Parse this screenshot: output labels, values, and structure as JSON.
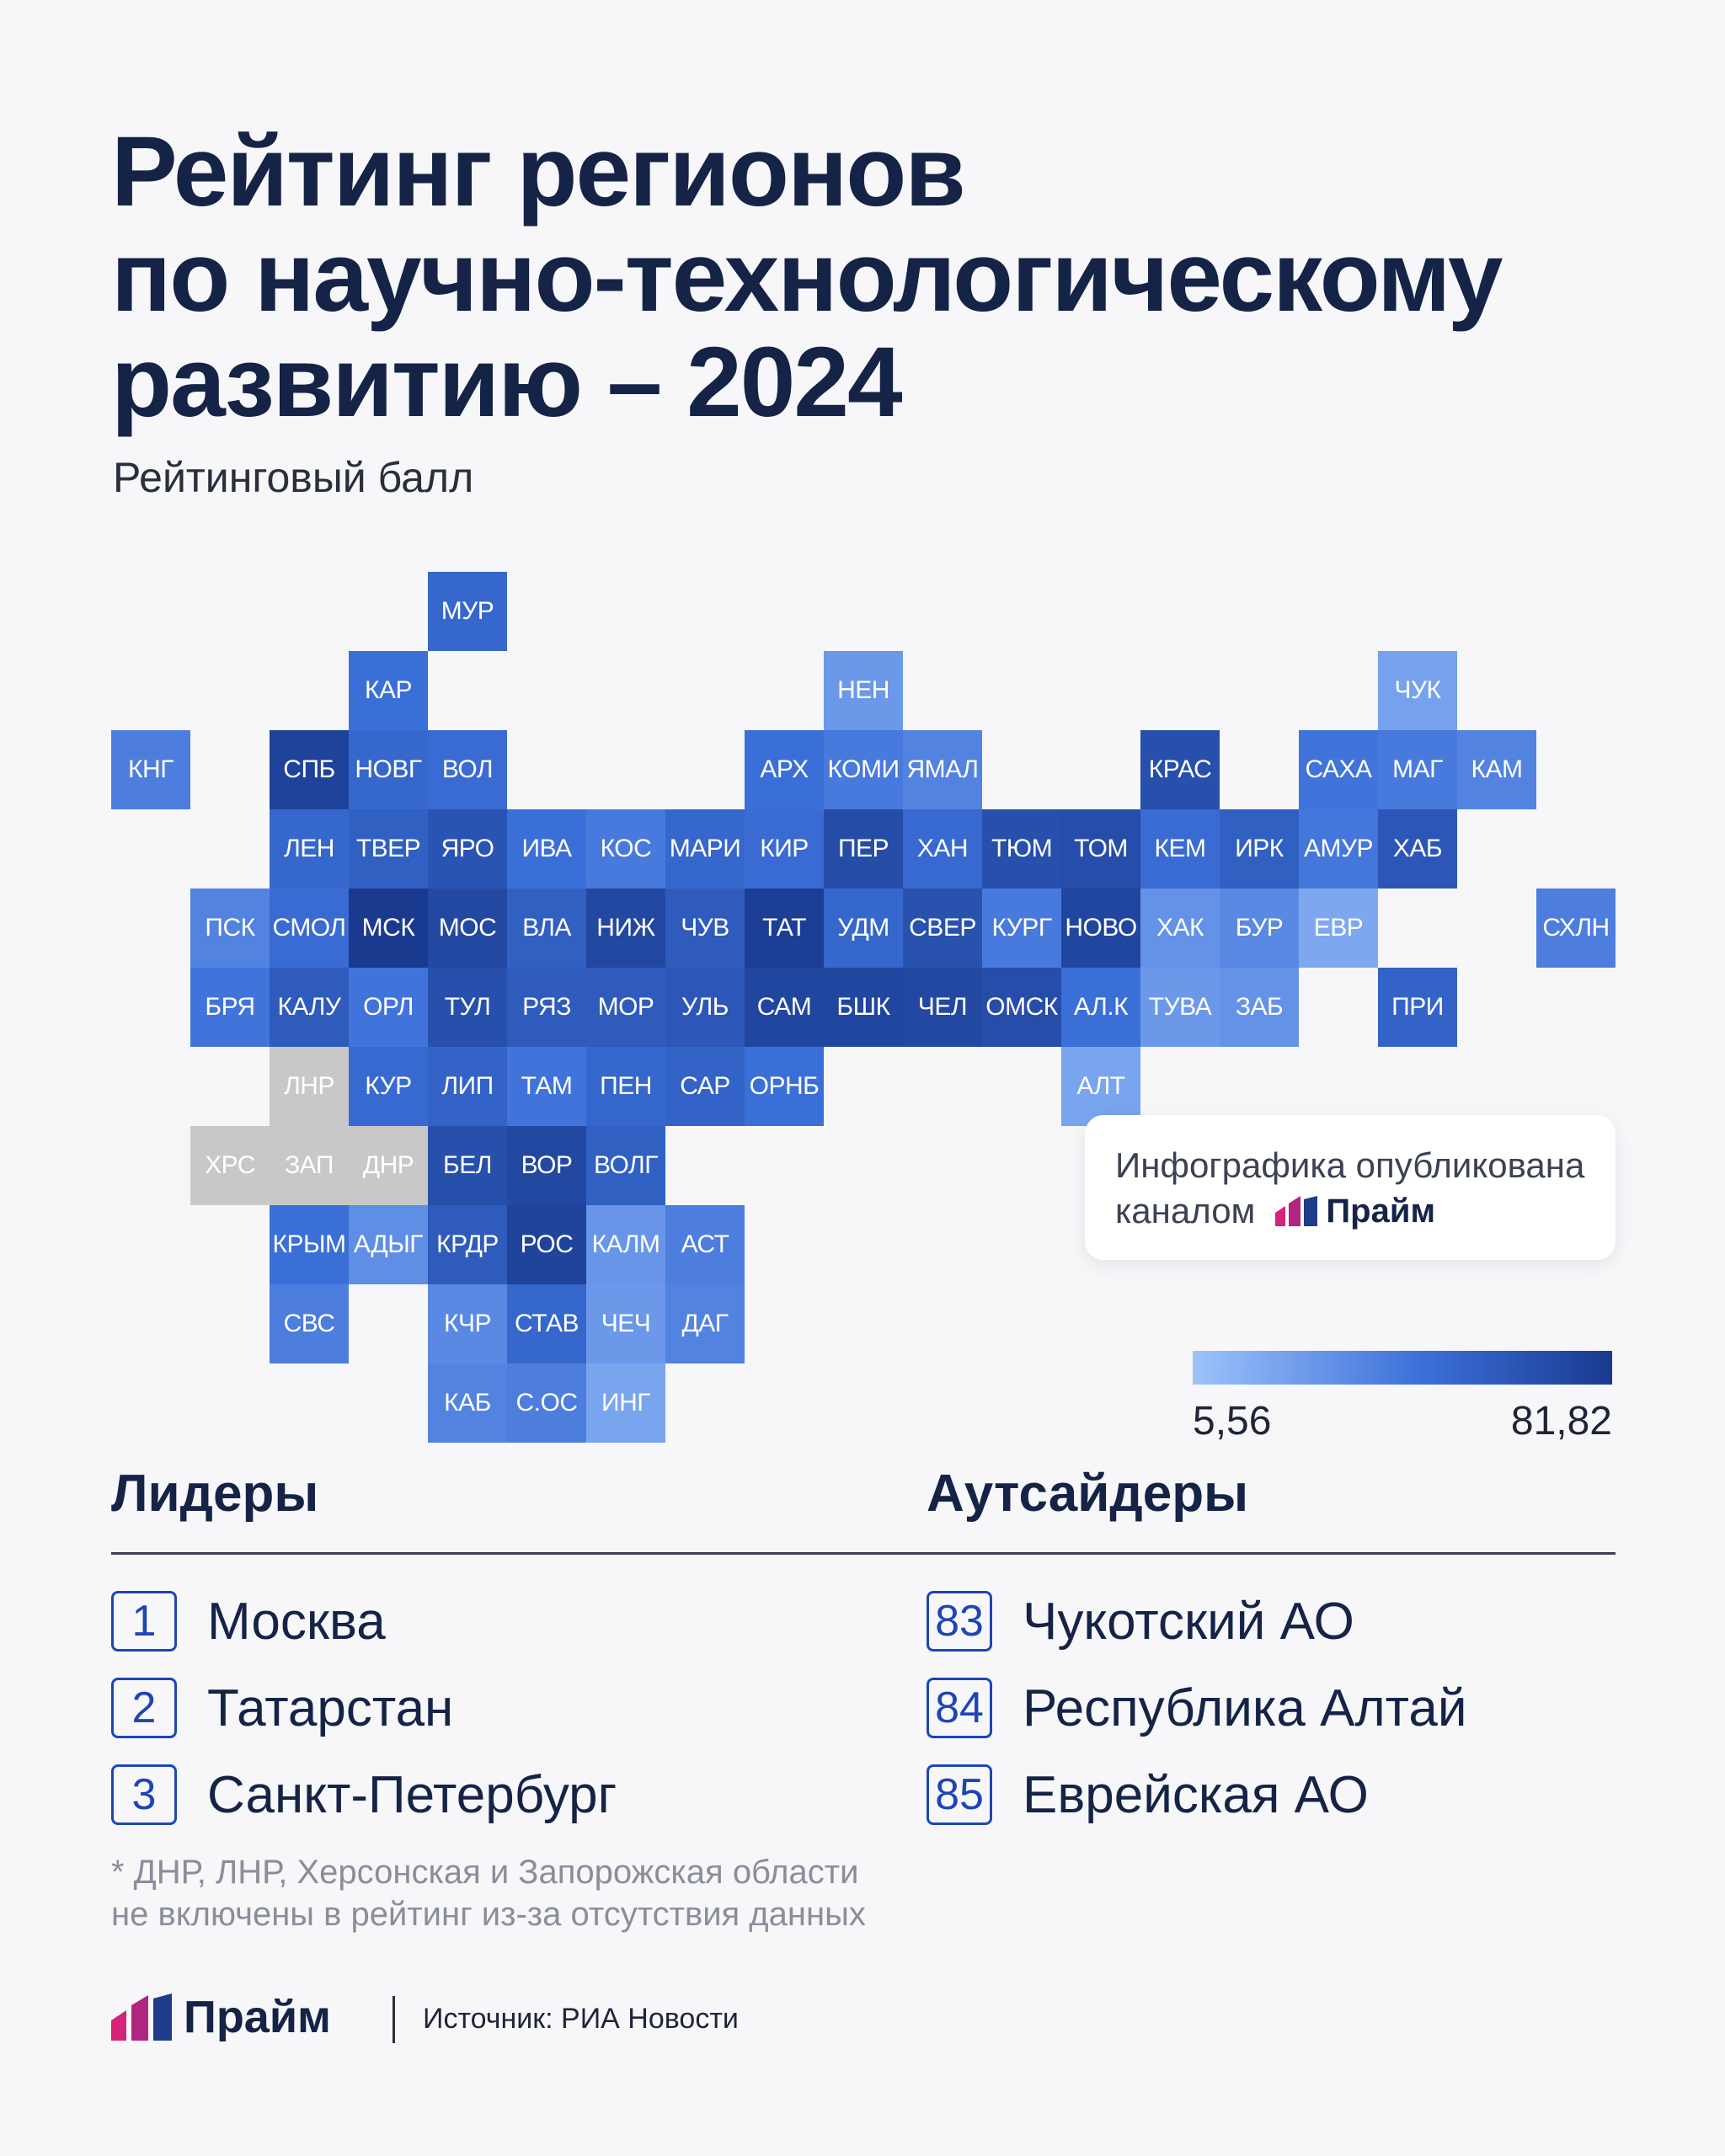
{
  "title_lines": [
    "Рейтинг регионов",
    "по научно-технологическому",
    "развитию – 2024"
  ],
  "subtitle": "Рейтинговый балл",
  "note": {
    "line1": "Инфографика опубликована",
    "line2": "каналом",
    "brand": "Прайм"
  },
  "legend": {
    "min": "5,56",
    "max": "81,82",
    "min_color": "#9dc3fb",
    "max_color": "#1a3a8f"
  },
  "colors": {
    "excluded": "#c8c8c8",
    "text_dark": "#152347",
    "accent": "#1f45b5"
  },
  "leaders": {
    "heading": "Лидеры",
    "items": [
      {
        "rank": "1",
        "name": "Москва"
      },
      {
        "rank": "2",
        "name": "Татарстан"
      },
      {
        "rank": "3",
        "name": "Санкт-Петербург"
      }
    ]
  },
  "outsiders": {
    "heading": "Аутсайдеры",
    "items": [
      {
        "rank": "83",
        "name": "Чукотский АО"
      },
      {
        "rank": "84",
        "name": "Республика Алтай"
      },
      {
        "rank": "85",
        "name": "Еврейская АО"
      }
    ]
  },
  "footnote": [
    "* ДНР, ЛНР, Херсонская и Запорожская области",
    "не включены в рейтинг из-за отсутствия данных"
  ],
  "footer": {
    "brand": "Прайм",
    "source": "Источник: РИА Новости"
  },
  "chart_data": {
    "type": "heatmap",
    "scale": {
      "min": 5.56,
      "max": 81.82
    },
    "cells": [
      {
        "label": "МУР",
        "row": 0,
        "col": 4,
        "shade": 0.62
      },
      {
        "label": "КАР",
        "row": 1,
        "col": 3,
        "shade": 0.55
      },
      {
        "label": "НЕН",
        "row": 1,
        "col": 9,
        "shade": 0.28
      },
      {
        "label": "ЧУК",
        "row": 1,
        "col": 16,
        "shade": 0.22
      },
      {
        "label": "КНГ",
        "row": 2,
        "col": 0,
        "shade": 0.45
      },
      {
        "label": "СПБ",
        "row": 2,
        "col": 2,
        "shade": 0.93
      },
      {
        "label": "НОВГ",
        "row": 2,
        "col": 3,
        "shade": 0.62
      },
      {
        "label": "ВОЛ",
        "row": 2,
        "col": 4,
        "shade": 0.58
      },
      {
        "label": "АРХ",
        "row": 2,
        "col": 8,
        "shade": 0.55
      },
      {
        "label": "КОМИ",
        "row": 2,
        "col": 9,
        "shade": 0.48
      },
      {
        "label": "ЯМАЛ",
        "row": 2,
        "col": 10,
        "shade": 0.42
      },
      {
        "label": "КРАС",
        "row": 2,
        "col": 13,
        "shade": 0.82
      },
      {
        "label": "САХА",
        "row": 2,
        "col": 15,
        "shade": 0.52
      },
      {
        "label": "МАГ",
        "row": 2,
        "col": 16,
        "shade": 0.48
      },
      {
        "label": "КАМ",
        "row": 2,
        "col": 17,
        "shade": 0.42
      },
      {
        "label": "ЛЕН",
        "row": 3,
        "col": 2,
        "shade": 0.62
      },
      {
        "label": "ТВЕР",
        "row": 3,
        "col": 3,
        "shade": 0.68
      },
      {
        "label": "ЯРО",
        "row": 3,
        "col": 4,
        "shade": 0.78
      },
      {
        "label": "ИВА",
        "row": 3,
        "col": 5,
        "shade": 0.55
      },
      {
        "label": "КОС",
        "row": 3,
        "col": 6,
        "shade": 0.48
      },
      {
        "label": "МАРИ",
        "row": 3,
        "col": 7,
        "shade": 0.62
      },
      {
        "label": "КИР",
        "row": 3,
        "col": 8,
        "shade": 0.58
      },
      {
        "label": "ПЕР",
        "row": 3,
        "col": 9,
        "shade": 0.85
      },
      {
        "label": "ХАН",
        "row": 3,
        "col": 10,
        "shade": 0.6
      },
      {
        "label": "ТЮМ",
        "row": 3,
        "col": 11,
        "shade": 0.82
      },
      {
        "label": "ТОМ",
        "row": 3,
        "col": 12,
        "shade": 0.84
      },
      {
        "label": "КЕМ",
        "row": 3,
        "col": 13,
        "shade": 0.58
      },
      {
        "label": "ИРК",
        "row": 3,
        "col": 14,
        "shade": 0.68
      },
      {
        "label": "АМУР",
        "row": 3,
        "col": 15,
        "shade": 0.5
      },
      {
        "label": "ХАБ",
        "row": 3,
        "col": 16,
        "shade": 0.75
      },
      {
        "label": "ПСК",
        "row": 4,
        "col": 1,
        "shade": 0.42
      },
      {
        "label": "СМОЛ",
        "row": 4,
        "col": 2,
        "shade": 0.58
      },
      {
        "label": "МСК",
        "row": 4,
        "col": 3,
        "shade": 1.0
      },
      {
        "label": "МОС",
        "row": 4,
        "col": 4,
        "shade": 0.88
      },
      {
        "label": "ВЛА",
        "row": 4,
        "col": 5,
        "shade": 0.68
      },
      {
        "label": "НИЖ",
        "row": 4,
        "col": 6,
        "shade": 0.88
      },
      {
        "label": "ЧУВ",
        "row": 4,
        "col": 7,
        "shade": 0.72
      },
      {
        "label": "ТАТ",
        "row": 4,
        "col": 8,
        "shade": 0.97
      },
      {
        "label": "УДМ",
        "row": 4,
        "col": 9,
        "shade": 0.62
      },
      {
        "label": "СВЕР",
        "row": 4,
        "col": 10,
        "shade": 0.8
      },
      {
        "label": "КУРГ",
        "row": 4,
        "col": 11,
        "shade": 0.48
      },
      {
        "label": "НОВО",
        "row": 4,
        "col": 12,
        "shade": 0.9
      },
      {
        "label": "ХАК",
        "row": 4,
        "col": 13,
        "shade": 0.32
      },
      {
        "label": "БУР",
        "row": 4,
        "col": 14,
        "shade": 0.38
      },
      {
        "label": "ЕВР",
        "row": 4,
        "col": 15,
        "shade": 0.18
      },
      {
        "label": "СХЛН",
        "row": 4,
        "col": 18,
        "shade": 0.45
      },
      {
        "label": "БРЯ",
        "row": 5,
        "col": 1,
        "shade": 0.52
      },
      {
        "label": "КАЛУ",
        "row": 5,
        "col": 2,
        "shade": 0.72
      },
      {
        "label": "ОРЛ",
        "row": 5,
        "col": 3,
        "shade": 0.52
      },
      {
        "label": "ТУЛ",
        "row": 5,
        "col": 4,
        "shade": 0.82
      },
      {
        "label": "РЯЗ",
        "row": 5,
        "col": 5,
        "shade": 0.72
      },
      {
        "label": "МОР",
        "row": 5,
        "col": 6,
        "shade": 0.72
      },
      {
        "label": "УЛЬ",
        "row": 5,
        "col": 7,
        "shade": 0.75
      },
      {
        "label": "САМ",
        "row": 5,
        "col": 8,
        "shade": 0.9
      },
      {
        "label": "БШК",
        "row": 5,
        "col": 9,
        "shade": 0.9
      },
      {
        "label": "ЧЕЛ",
        "row": 5,
        "col": 10,
        "shade": 0.88
      },
      {
        "label": "ОМСК",
        "row": 5,
        "col": 11,
        "shade": 0.84
      },
      {
        "label": "АЛ.К",
        "row": 5,
        "col": 12,
        "shade": 0.55
      },
      {
        "label": "ТУВА",
        "row": 5,
        "col": 13,
        "shade": 0.28
      },
      {
        "label": "ЗАБ",
        "row": 5,
        "col": 14,
        "shade": 0.32
      },
      {
        "label": "ПРИ",
        "row": 5,
        "col": 16,
        "shade": 0.65
      },
      {
        "label": "ЛНР",
        "row": 6,
        "col": 2,
        "shade": null
      },
      {
        "label": "КУР",
        "row": 6,
        "col": 3,
        "shade": 0.6
      },
      {
        "label": "ЛИП",
        "row": 6,
        "col": 4,
        "shade": 0.65
      },
      {
        "label": "ТАМ",
        "row": 6,
        "col": 5,
        "shade": 0.52
      },
      {
        "label": "ПЕН",
        "row": 6,
        "col": 6,
        "shade": 0.62
      },
      {
        "label": "САР",
        "row": 6,
        "col": 7,
        "shade": 0.65
      },
      {
        "label": "ОРНБ",
        "row": 6,
        "col": 8,
        "shade": 0.55
      },
      {
        "label": "АЛТ",
        "row": 6,
        "col": 12,
        "shade": 0.2
      },
      {
        "label": "ХРС",
        "row": 7,
        "col": 1,
        "shade": null
      },
      {
        "label": "ЗАП",
        "row": 7,
        "col": 2,
        "shade": null
      },
      {
        "label": "ДНР",
        "row": 7,
        "col": 3,
        "shade": null
      },
      {
        "label": "БЕЛ",
        "row": 7,
        "col": 4,
        "shade": 0.82
      },
      {
        "label": "ВОР",
        "row": 7,
        "col": 5,
        "shade": 0.88
      },
      {
        "label": "ВОЛГ",
        "row": 7,
        "col": 6,
        "shade": 0.68
      },
      {
        "label": "КРЫМ",
        "row": 8,
        "col": 2,
        "shade": 0.55
      },
      {
        "label": "АДЫГ",
        "row": 8,
        "col": 3,
        "shade": 0.35
      },
      {
        "label": "КРДР",
        "row": 8,
        "col": 4,
        "shade": 0.72
      },
      {
        "label": "РОС",
        "row": 8,
        "col": 5,
        "shade": 0.92
      },
      {
        "label": "КАЛМ",
        "row": 8,
        "col": 6,
        "shade": 0.3
      },
      {
        "label": "АСТ",
        "row": 8,
        "col": 7,
        "shade": 0.45
      },
      {
        "label": "СВС",
        "row": 9,
        "col": 2,
        "shade": 0.45
      },
      {
        "label": "КЧР",
        "row": 9,
        "col": 4,
        "shade": 0.38
      },
      {
        "label": "СТАВ",
        "row": 9,
        "col": 5,
        "shade": 0.62
      },
      {
        "label": "ЧЕЧ",
        "row": 9,
        "col": 6,
        "shade": 0.28
      },
      {
        "label": "ДАГ",
        "row": 9,
        "col": 7,
        "shade": 0.42
      },
      {
        "label": "КАБ",
        "row": 10,
        "col": 4,
        "shade": 0.42
      },
      {
        "label": "С.ОС",
        "row": 10,
        "col": 5,
        "shade": 0.45
      },
      {
        "label": "ИНГ",
        "row": 10,
        "col": 6,
        "shade": 0.2
      }
    ]
  }
}
